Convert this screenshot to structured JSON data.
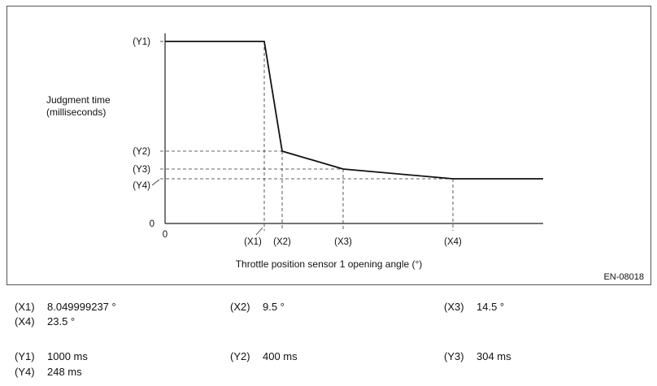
{
  "chart_data": {
    "type": "line",
    "ylabel_lines": [
      "Judgment time",
      "(milliseconds)"
    ],
    "xlabel": "Throttle position sensor 1 opening angle (°)",
    "figure_code": "EN-08018",
    "origin_x_label": "0",
    "origin_y_label": "0",
    "x_tick_labels": [
      "(X1)",
      "(X2)",
      "(X3)",
      "(X4)"
    ],
    "y_tick_labels": [
      "(Y1)",
      "(Y2)",
      "(Y3)",
      "(Y4)"
    ],
    "x": [
      0,
      8.049999237,
      9.5,
      14.5,
      23.5,
      31.6
    ],
    "y": [
      1000,
      1000,
      400,
      304,
      248,
      248
    ],
    "xlim": [
      0,
      31.6
    ],
    "ylim": [
      0,
      1000
    ]
  },
  "legend_rows": [
    [
      {
        "key": "(X1)",
        "value": "8.049999237 °"
      },
      {
        "key": "(X2)",
        "value": "9.5 °"
      },
      {
        "key": "(X3)",
        "value": "14.5 °"
      }
    ],
    [
      {
        "key": "(X4)",
        "value": "23.5 °"
      }
    ],
    [
      {
        "key": "(Y1)",
        "value": "1000 ms"
      },
      {
        "key": "(Y2)",
        "value": "400 ms"
      },
      {
        "key": "(Y3)",
        "value": "304 ms"
      }
    ],
    [
      {
        "key": "(Y4)",
        "value": "248 ms"
      }
    ]
  ]
}
